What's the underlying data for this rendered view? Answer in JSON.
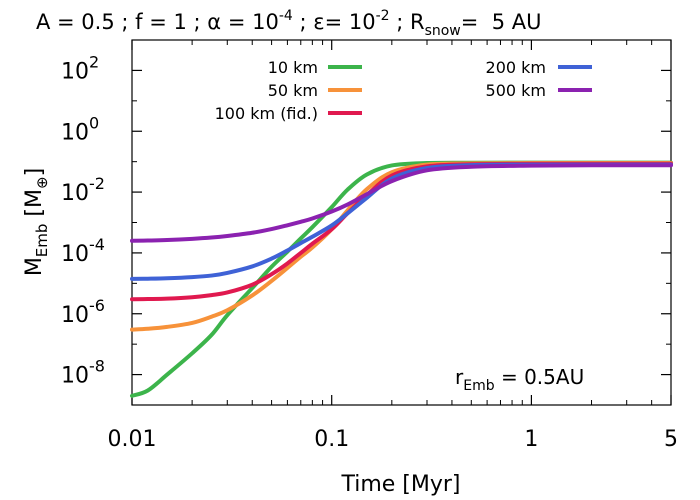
{
  "chart_data": {
    "type": "line",
    "title": {
      "A": "A = 0.5",
      "f": "f = 1",
      "alpha": "α = 10",
      "alpha_exp": "-4",
      "eps": "ε= 10",
      "eps_exp": "-2",
      "rsnow_pre": "R",
      "rsnow_sub": "snow",
      "rsnow_val": "=  5 AU",
      "sep": " ; "
    },
    "xlabel": "Time [Myr]",
    "ylabel": {
      "main": "M",
      "sub": "Emb",
      "unit": " [M",
      "unit_sub": "⊕",
      "close": "]"
    },
    "x_scale": "log",
    "y_scale": "log",
    "xlim": [
      0.01,
      5
    ],
    "ylim": [
      1e-09,
      1000
    ],
    "x_ticks": [
      {
        "value": 0.01,
        "label": "0.01"
      },
      {
        "value": 0.1,
        "label": "0.1"
      },
      {
        "value": 1,
        "label": "1"
      },
      {
        "value": 5,
        "label": "5"
      }
    ],
    "y_ticks": [
      {
        "value": 1e-08,
        "base": "10",
        "exp": "-8"
      },
      {
        "value": 1e-06,
        "base": "10",
        "exp": "-6"
      },
      {
        "value": 0.0001,
        "base": "10",
        "exp": "-4"
      },
      {
        "value": 0.01,
        "base": "10",
        "exp": "-2"
      },
      {
        "value": 1,
        "base": "10",
        "exp": "0"
      },
      {
        "value": 100,
        "base": "10",
        "exp": "2"
      }
    ],
    "annotation": {
      "pre": "r",
      "sub": "Emb",
      "post": " = 0.5AU"
    },
    "legend_position": "top",
    "series": [
      {
        "name": "10 km",
        "color": "#3cb44b",
        "x": [
          0.01,
          0.012,
          0.015,
          0.02,
          0.025,
          0.03,
          0.04,
          0.05,
          0.06,
          0.07,
          0.08,
          0.1,
          0.12,
          0.15,
          0.2,
          0.3,
          0.5,
          1,
          2,
          5
        ],
        "y": [
          2e-09,
          3e-09,
          1e-08,
          5e-08,
          2e-07,
          9e-07,
          7e-06,
          3.5e-05,
          0.00011,
          0.0003,
          0.0007,
          0.0032,
          0.012,
          0.038,
          0.075,
          0.09,
          0.092,
          0.093,
          0.093,
          0.093
        ]
      },
      {
        "name": "50 km",
        "color": "#f7923a",
        "x": [
          0.01,
          0.012,
          0.015,
          0.02,
          0.025,
          0.03,
          0.04,
          0.05,
          0.06,
          0.07,
          0.08,
          0.1,
          0.12,
          0.15,
          0.2,
          0.3,
          0.5,
          1,
          2,
          5
        ],
        "y": [
          3e-07,
          3.2e-07,
          3.7e-07,
          5e-07,
          8e-07,
          1.3e-06,
          4e-06,
          1.2e-05,
          3.2e-05,
          7.5e-05,
          0.00015,
          0.0006,
          0.0025,
          0.0125,
          0.045,
          0.08,
          0.088,
          0.09,
          0.09,
          0.09
        ]
      },
      {
        "name": "100 km (fid.)",
        "color": "#e0194f",
        "x": [
          0.01,
          0.012,
          0.015,
          0.02,
          0.025,
          0.03,
          0.04,
          0.05,
          0.06,
          0.07,
          0.08,
          0.1,
          0.12,
          0.15,
          0.2,
          0.3,
          0.5,
          1,
          2,
          5
        ],
        "y": [
          3e-06,
          3.05e-06,
          3.15e-06,
          3.5e-06,
          4.1e-06,
          5e-06,
          9e-06,
          2e-05,
          4.5e-05,
          0.0001,
          0.0002,
          0.0006,
          0.002,
          0.008,
          0.035,
          0.07,
          0.082,
          0.085,
          0.085,
          0.085
        ]
      },
      {
        "name": "200 km",
        "color": "#3f62d6",
        "x": [
          0.01,
          0.012,
          0.015,
          0.02,
          0.025,
          0.03,
          0.04,
          0.05,
          0.06,
          0.07,
          0.08,
          0.1,
          0.12,
          0.15,
          0.2,
          0.3,
          0.5,
          1,
          2,
          5
        ],
        "y": [
          1.4e-05,
          1.42e-05,
          1.47e-05,
          1.6e-05,
          1.8e-05,
          2.2e-05,
          3.6e-05,
          6.5e-05,
          0.00012,
          0.00021,
          0.00034,
          0.0008,
          0.002,
          0.0065,
          0.028,
          0.062,
          0.077,
          0.08,
          0.08,
          0.08
        ]
      },
      {
        "name": "500 km",
        "color": "#8b22b0",
        "x": [
          0.01,
          0.012,
          0.015,
          0.02,
          0.025,
          0.03,
          0.04,
          0.05,
          0.06,
          0.07,
          0.08,
          0.1,
          0.12,
          0.15,
          0.2,
          0.3,
          0.5,
          1,
          2,
          5
        ],
        "y": [
          0.00025,
          0.000255,
          0.000265,
          0.00029,
          0.00032,
          0.00036,
          0.00046,
          0.00061,
          0.00081,
          0.00105,
          0.00135,
          0.0023,
          0.0039,
          0.0085,
          0.023,
          0.052,
          0.068,
          0.074,
          0.076,
          0.076
        ]
      }
    ]
  }
}
